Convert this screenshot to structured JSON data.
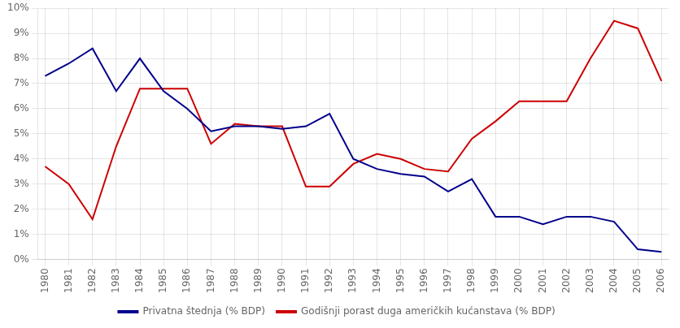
{
  "chart_data": {
    "type": "line",
    "x": [
      1980,
      1981,
      1982,
      1983,
      1984,
      1985,
      1986,
      1987,
      1988,
      1989,
      1990,
      1991,
      1992,
      1993,
      1994,
      1995,
      1996,
      1997,
      1998,
      1999,
      2000,
      2001,
      2002,
      2003,
      2004,
      2005,
      2006
    ],
    "series": [
      {
        "name": "Privatna štednja (% BDP)",
        "color": "#00008B",
        "values": [
          7.3,
          7.8,
          8.4,
          6.7,
          8.0,
          6.7,
          6.0,
          5.1,
          5.3,
          5.3,
          5.2,
          5.3,
          5.8,
          4.0,
          3.6,
          3.4,
          3.3,
          2.7,
          3.2,
          1.7,
          1.7,
          1.4,
          1.7,
          1.7,
          1.5,
          0.4,
          0.3
        ]
      },
      {
        "name": "Godišnji porast duga američkih kućanstava (% BDP)",
        "color": "#CC0000",
        "values": [
          3.7,
          3.0,
          1.6,
          4.5,
          6.8,
          6.8,
          6.8,
          4.6,
          5.4,
          5.3,
          5.3,
          2.9,
          2.9,
          3.8,
          4.2,
          4.0,
          3.6,
          3.5,
          4.8,
          5.5,
          6.3,
          6.3,
          6.3,
          8.0,
          9.5,
          9.2,
          7.1
        ]
      }
    ],
    "xlim": [
      1979.7,
      2006.3
    ],
    "xticks": [
      1980,
      1981,
      1982,
      1983,
      1984,
      1985,
      1986,
      1987,
      1988,
      1989,
      1990,
      1991,
      1992,
      1993,
      1994,
      1995,
      1996,
      1997,
      1998,
      1999,
      2000,
      2001,
      2002,
      2003,
      2004,
      2005,
      2006
    ],
    "ylim": [
      0,
      10
    ],
    "yticks": [
      {
        "value": 0,
        "label": "0%"
      },
      {
        "value": 1,
        "label": "1%"
      },
      {
        "value": 2,
        "label": "2%"
      },
      {
        "value": 3,
        "label": "3%"
      },
      {
        "value": 4,
        "label": "4%"
      },
      {
        "value": 5,
        "label": "5%"
      },
      {
        "value": 6,
        "label": "6%"
      },
      {
        "value": 7,
        "label": "7%"
      },
      {
        "value": 8,
        "label": "8%"
      },
      {
        "value": 9,
        "label": "9%"
      },
      {
        "value": 10,
        "label": "10%"
      }
    ],
    "grid": true,
    "legend": "bottom"
  }
}
